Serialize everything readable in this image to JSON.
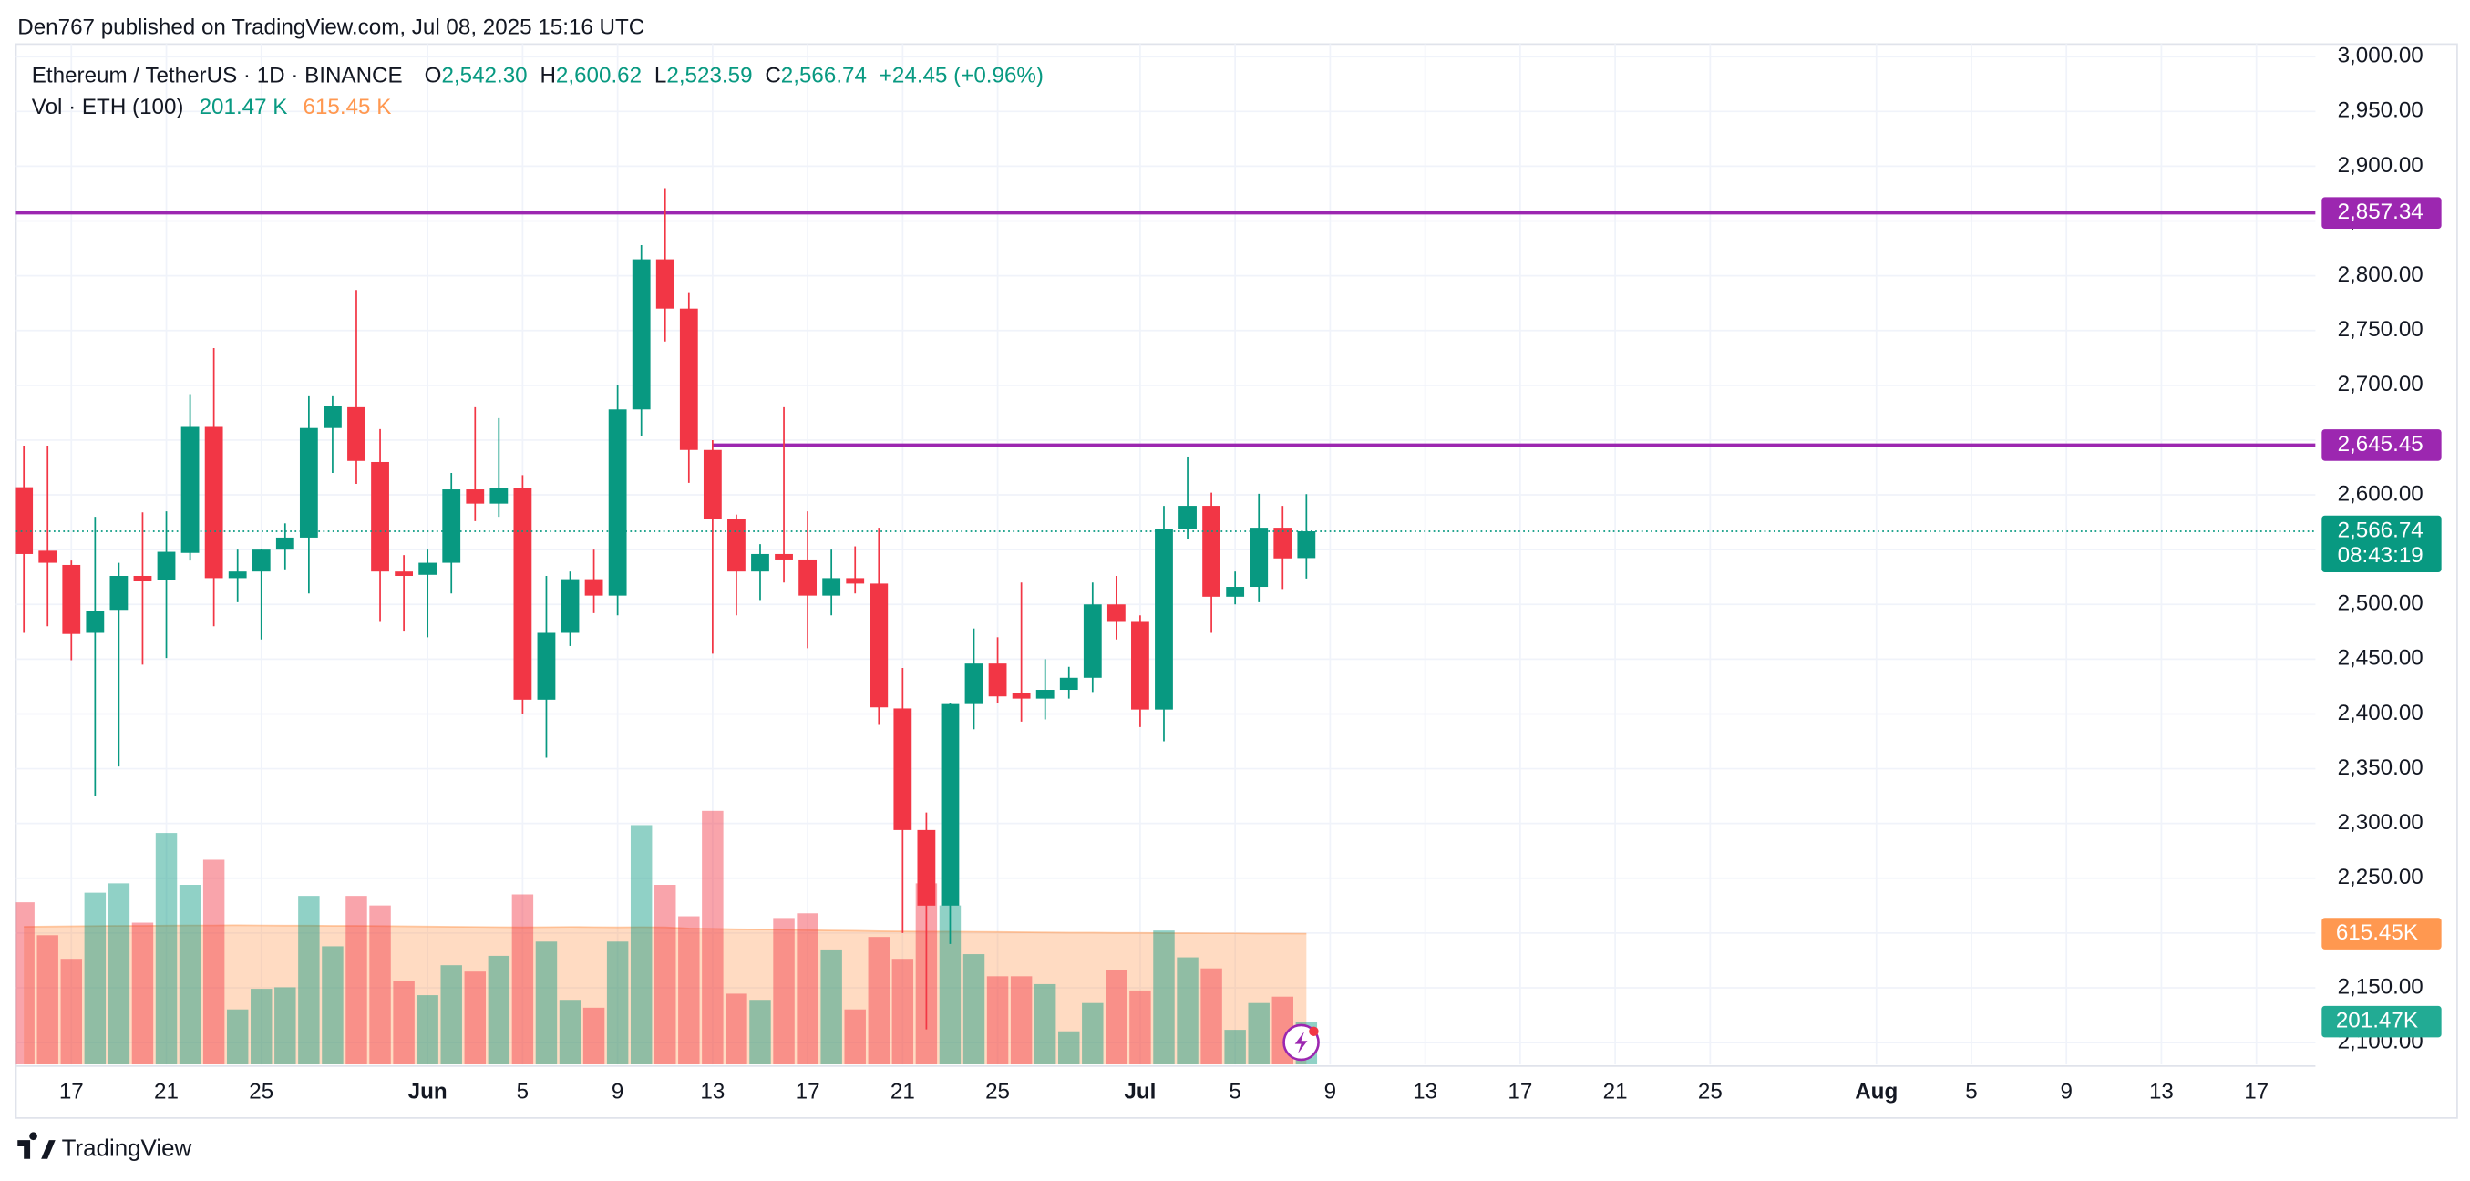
{
  "header": {
    "published": "Den767 published on TradingView.com, Jul 08, 2025 15:16 UTC",
    "brand": "TradingView"
  },
  "chart_data": {
    "type": "candlestick",
    "title": "Ethereum / TetherUS · 1D · BINANCE",
    "ohlc_letters": [
      "O",
      "H",
      "L",
      "C"
    ],
    "ohlc_labels": [
      "2,542.30",
      "2,600.62",
      "2,523.59",
      "2,566.74"
    ],
    "change_label": "+24.45 (+0.96%)",
    "volume_title": "Vol · ETH (100)",
    "volume_labels": [
      "201.47 K",
      "615.45 K"
    ],
    "axis_volume_labels": [
      "201.47K",
      "615.45K"
    ],
    "last_price_label": "2,566.74",
    "countdown": "08:43:19",
    "up_color": "#089981",
    "down_color": "#f23645",
    "ma_color": "#ff9850",
    "x": [
      "2025-05-15",
      "2025-05-16",
      "2025-05-17",
      "2025-05-18",
      "2025-05-19",
      "2025-05-20",
      "2025-05-21",
      "2025-05-22",
      "2025-05-23",
      "2025-05-24",
      "2025-05-25",
      "2025-05-26",
      "2025-05-27",
      "2025-05-28",
      "2025-05-29",
      "2025-05-30",
      "2025-05-31",
      "2025-06-01",
      "2025-06-02",
      "2025-06-03",
      "2025-06-04",
      "2025-06-05",
      "2025-06-06",
      "2025-06-07",
      "2025-06-08",
      "2025-06-09",
      "2025-06-10",
      "2025-06-11",
      "2025-06-12",
      "2025-06-13",
      "2025-06-14",
      "2025-06-15",
      "2025-06-16",
      "2025-06-17",
      "2025-06-18",
      "2025-06-19",
      "2025-06-20",
      "2025-06-21",
      "2025-06-22",
      "2025-06-23",
      "2025-06-24",
      "2025-06-25",
      "2025-06-26",
      "2025-06-27",
      "2025-06-28",
      "2025-06-29",
      "2025-06-30",
      "2025-07-01",
      "2025-07-02",
      "2025-07-03",
      "2025-07-04",
      "2025-07-05",
      "2025-07-06",
      "2025-07-07",
      "2025-07-08"
    ],
    "open": [
      2607,
      2549,
      2536,
      2474,
      2495,
      2526,
      2522,
      2547,
      2662,
      2524,
      2530,
      2550,
      2561,
      2661,
      2680,
      2630,
      2530,
      2527,
      2538,
      2605,
      2592,
      2606,
      2413,
      2474,
      2523,
      2508,
      2678,
      2815,
      2770,
      2641,
      2578,
      2530,
      2546,
      2541,
      2508,
      2524,
      2519,
      2405,
      2294,
      2225,
      2409,
      2446,
      2419,
      2414,
      2422,
      2433,
      2500,
      2484,
      2404,
      2569,
      2590,
      2507,
      2516,
      2570,
      2542.3
    ],
    "high": [
      2645,
      2645,
      2540,
      2580,
      2538,
      2584,
      2585,
      2692,
      2734,
      2550,
      2551,
      2574,
      2690,
      2690,
      2787,
      2660,
      2545,
      2550,
      2620,
      2680,
      2670,
      2618,
      2526,
      2530,
      2550,
      2700,
      2828,
      2880,
      2785,
      2650,
      2582,
      2555,
      2680,
      2585,
      2550,
      2553,
      2570,
      2442,
      2310,
      2410,
      2478,
      2470,
      2520,
      2450,
      2443,
      2520,
      2526,
      2490,
      2590,
      2635,
      2602,
      2530,
      2601,
      2590,
      2600.62
    ],
    "low": [
      2474,
      2480,
      2449,
      2325,
      2352,
      2445,
      2451,
      2540,
      2480,
      2502,
      2468,
      2532,
      2510,
      2620,
      2610,
      2484,
      2476,
      2470,
      2510,
      2576,
      2580,
      2400,
      2360,
      2462,
      2492,
      2490,
      2654,
      2740,
      2611,
      2455,
      2490,
      2504,
      2520,
      2460,
      2490,
      2510,
      2390,
      2200,
      2112,
      2190,
      2386,
      2410,
      2393,
      2395,
      2414,
      2420,
      2468,
      2388,
      2375,
      2560,
      2474,
      2500,
      2502,
      2514,
      2523.59
    ],
    "close": [
      2546,
      2538,
      2473,
      2494,
      2526,
      2521,
      2548,
      2662,
      2524,
      2530,
      2550,
      2561,
      2661,
      2681,
      2631,
      2530,
      2526,
      2538,
      2605,
      2592,
      2606,
      2413,
      2474,
      2523,
      2508,
      2678,
      2815,
      2770,
      2641,
      2578,
      2530,
      2546,
      2541,
      2508,
      2524,
      2519,
      2406,
      2294,
      2225,
      2409,
      2446,
      2416,
      2414,
      2422,
      2433,
      2500,
      2484,
      2404,
      2569,
      2590,
      2507,
      2516,
      2570,
      2542,
      2566.74
    ],
    "volume": [
      763,
      608,
      497,
      808,
      852,
      667,
      1089,
      845,
      963,
      259,
      356,
      363,
      793,
      556,
      793,
      748,
      393,
      326,
      467,
      437,
      511,
      800,
      578,
      304,
      267,
      578,
      1126,
      845,
      697,
      1193,
      333,
      304,
      689,
      711,
      541,
      259,
      600,
      497,
      852,
      748,
      519,
      415,
      415,
      378,
      156,
      289,
      445,
      348,
      630,
      504,
      452,
      163,
      289,
      319,
      201.47
    ],
    "volume_ma": [
      648,
      649,
      650,
      651,
      652,
      652,
      653,
      654,
      654,
      655,
      654,
      653,
      653,
      652,
      652,
      651,
      650,
      649,
      648,
      647,
      646,
      645,
      646,
      647,
      646,
      645,
      646,
      645,
      640,
      638,
      636,
      635,
      634,
      632,
      630,
      629,
      627,
      626,
      625,
      625,
      624,
      623,
      622,
      621,
      620,
      620,
      619,
      619,
      618,
      618,
      617,
      617,
      616,
      616,
      615.45
    ],
    "vlim": [
      0,
      1200
    ],
    "hlines": [
      {
        "value": 2857.34,
        "label": "2,857.34",
        "start": "2025-05-15",
        "color": "#9c27b0"
      },
      {
        "value": 2645.45,
        "label": "2,645.45",
        "start": "2025-06-13",
        "color": "#9c27b0"
      }
    ],
    "xlim": [
      "2025-05-15",
      "2025-08-19"
    ],
    "ylim": [
      2080,
      3000
    ],
    "yticks": [
      {
        "value": 2100,
        "label": "2,100.00"
      },
      {
        "value": 2150,
        "label": "2,150.00"
      },
      {
        "value": 2200,
        "label": "2,200.00"
      },
      {
        "value": 2250,
        "label": "2,250.00"
      },
      {
        "value": 2300,
        "label": "2,300.00"
      },
      {
        "value": 2350,
        "label": "2,350.00"
      },
      {
        "value": 2400,
        "label": "2,400.00"
      },
      {
        "value": 2450,
        "label": "2,450.00"
      },
      {
        "value": 2500,
        "label": "2,500.00"
      },
      {
        "value": 2550,
        "label": "2,550.00"
      },
      {
        "value": 2600,
        "label": "2,600.00"
      },
      {
        "value": 2650,
        "label": "2,650.00"
      },
      {
        "value": 2700,
        "label": "2,700.00"
      },
      {
        "value": 2750,
        "label": "2,750.00"
      },
      {
        "value": 2800,
        "label": "2,800.00"
      },
      {
        "value": 2850,
        "label": "2,850.00"
      },
      {
        "value": 2900,
        "label": "2,900.00"
      },
      {
        "value": 2950,
        "label": "2,950.00"
      },
      {
        "value": 3000,
        "label": "3,000.00"
      }
    ],
    "xticks": [
      {
        "value": "2025-05-17",
        "label": "17"
      },
      {
        "value": "2025-05-21",
        "label": "21"
      },
      {
        "value": "2025-05-25",
        "label": "25"
      },
      {
        "value": "2025-06-01",
        "label": "Jun"
      },
      {
        "value": "2025-06-05",
        "label": "5"
      },
      {
        "value": "2025-06-09",
        "label": "9"
      },
      {
        "value": "2025-06-13",
        "label": "13"
      },
      {
        "value": "2025-06-17",
        "label": "17"
      },
      {
        "value": "2025-06-21",
        "label": "21"
      },
      {
        "value": "2025-06-25",
        "label": "25"
      },
      {
        "value": "2025-07-01",
        "label": "Jul"
      },
      {
        "value": "2025-07-05",
        "label": "5"
      },
      {
        "value": "2025-07-09",
        "label": "9"
      },
      {
        "value": "2025-07-13",
        "label": "13"
      },
      {
        "value": "2025-07-17",
        "label": "17"
      },
      {
        "value": "2025-07-21",
        "label": "21"
      },
      {
        "value": "2025-07-25",
        "label": "25"
      },
      {
        "value": "2025-08-01",
        "label": "Aug"
      },
      {
        "value": "2025-08-05",
        "label": "5"
      },
      {
        "value": "2025-08-09",
        "label": "9"
      },
      {
        "value": "2025-08-13",
        "label": "13"
      },
      {
        "value": "2025-08-17",
        "label": "17"
      }
    ],
    "grid": true
  }
}
